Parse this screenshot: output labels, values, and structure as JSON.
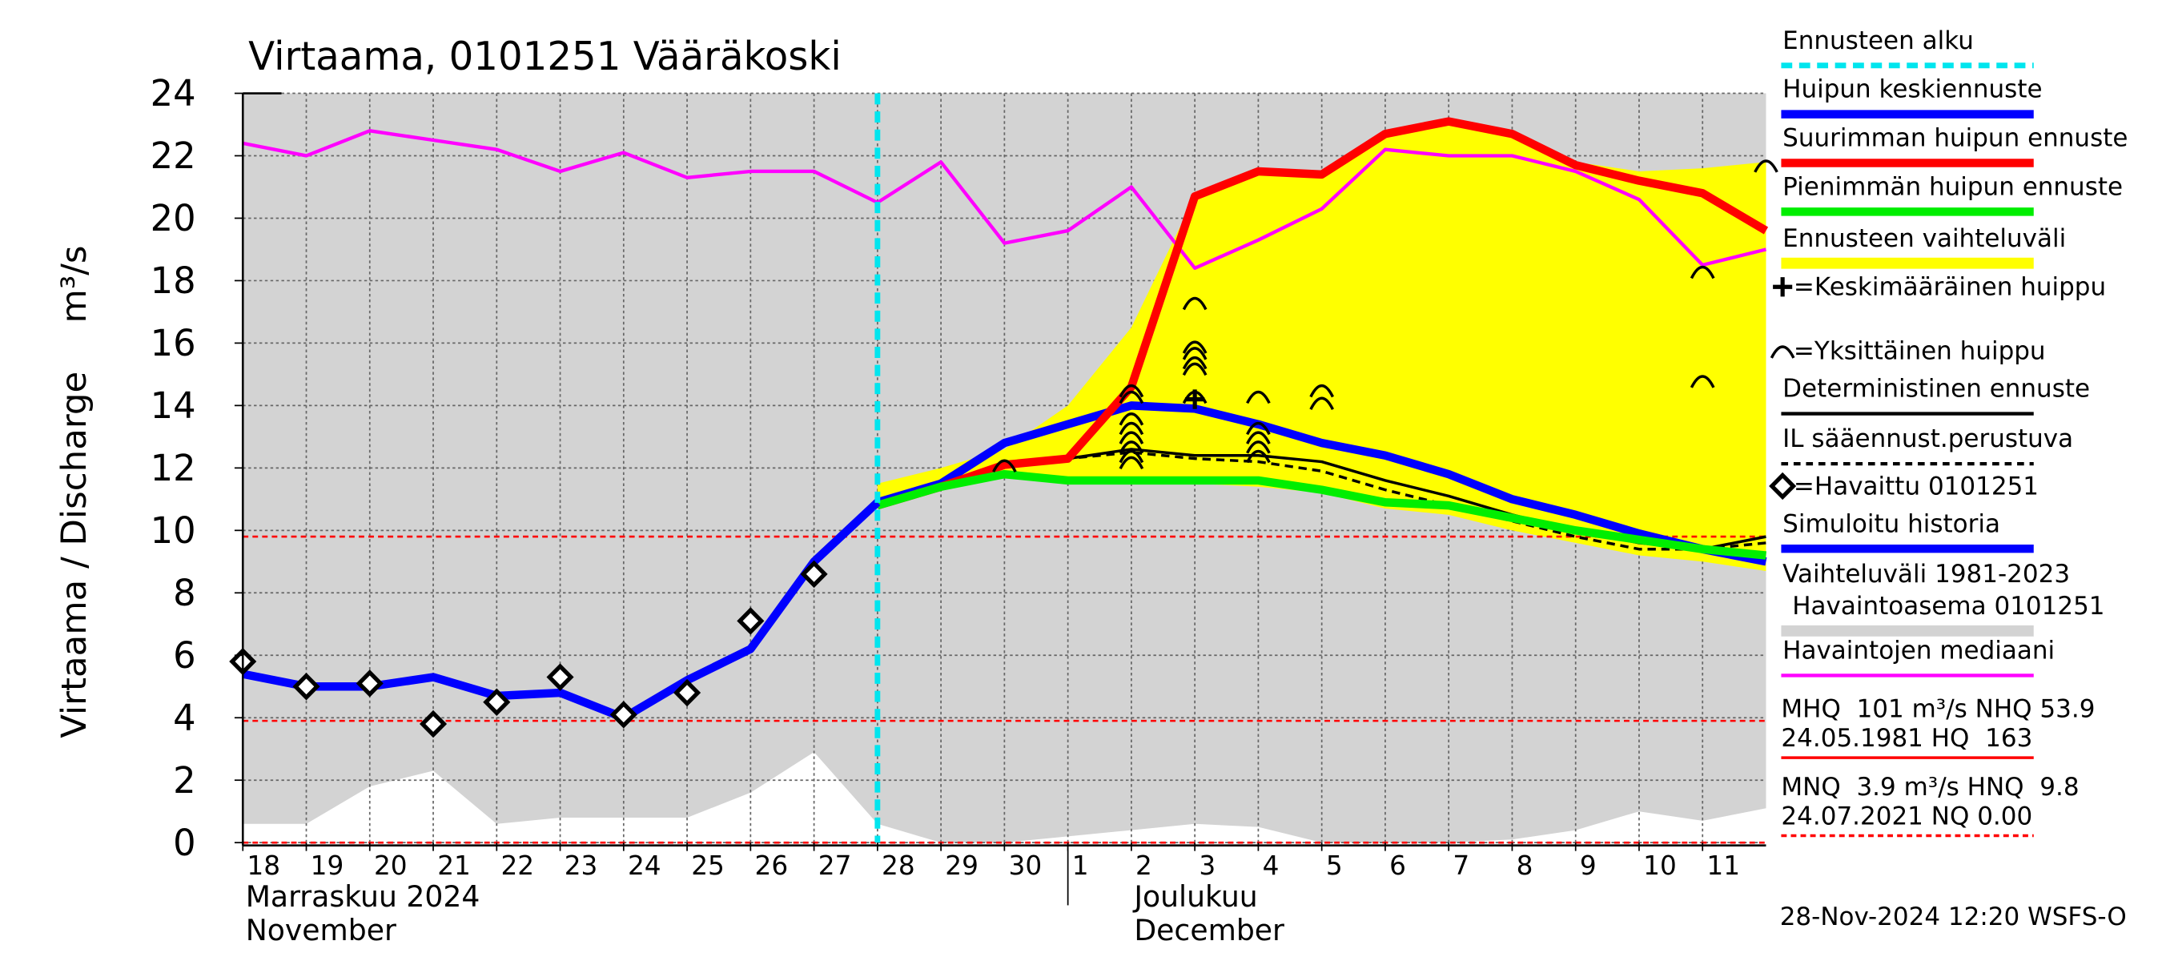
{
  "chart_data": {
    "type": "line",
    "title": "Virtaama, 0101251 Vääräkoski",
    "y_label": "Virtaama / Discharge",
    "y_unit": "m³/s",
    "x": [
      "2024-11-18",
      "2024-11-19",
      "2024-11-20",
      "2024-11-21",
      "2024-11-22",
      "2024-11-23",
      "2024-11-24",
      "2024-11-25",
      "2024-11-26",
      "2024-11-27",
      "2024-11-28",
      "2024-11-29",
      "2024-11-30",
      "2024-12-01",
      "2024-12-02",
      "2024-12-03",
      "2024-12-04",
      "2024-12-05",
      "2024-12-06",
      "2024-12-07",
      "2024-12-08",
      "2024-12-09",
      "2024-12-10",
      "2024-12-11",
      "2024-12-12"
    ],
    "xlim": [
      "2024-11-18",
      "2024-12-12"
    ],
    "xticks": [
      {
        "value": "2024-11-18",
        "label": "18"
      },
      {
        "value": "2024-11-19",
        "label": "19"
      },
      {
        "value": "2024-11-20",
        "label": "20"
      },
      {
        "value": "2024-11-21",
        "label": "21"
      },
      {
        "value": "2024-11-22",
        "label": "22"
      },
      {
        "value": "2024-11-23",
        "label": "23"
      },
      {
        "value": "2024-11-24",
        "label": "24"
      },
      {
        "value": "2024-11-25",
        "label": "25"
      },
      {
        "value": "2024-11-26",
        "label": "26"
      },
      {
        "value": "2024-11-27",
        "label": "27"
      },
      {
        "value": "2024-11-28",
        "label": "28"
      },
      {
        "value": "2024-11-29",
        "label": "29"
      },
      {
        "value": "2024-11-30",
        "label": "30"
      },
      {
        "value": "2024-12-01",
        "label": "1"
      },
      {
        "value": "2024-12-02",
        "label": "2"
      },
      {
        "value": "2024-12-03",
        "label": "3"
      },
      {
        "value": "2024-12-04",
        "label": "4"
      },
      {
        "value": "2024-12-05",
        "label": "5"
      },
      {
        "value": "2024-12-06",
        "label": "6"
      },
      {
        "value": "2024-12-07",
        "label": "7"
      },
      {
        "value": "2024-12-08",
        "label": "8"
      },
      {
        "value": "2024-12-09",
        "label": "9"
      },
      {
        "value": "2024-12-10",
        "label": "10"
      },
      {
        "value": "2024-12-11",
        "label": "11"
      }
    ],
    "month_labels": [
      {
        "value": "2024-11-18",
        "fi": "Marraskuu 2024",
        "en": "November"
      },
      {
        "value": "2024-12-02",
        "fi": "Joulukuu",
        "en": "December"
      }
    ],
    "ylim": [
      0,
      24
    ],
    "yticks": [
      0,
      2,
      4,
      6,
      8,
      10,
      12,
      14,
      16,
      18,
      20,
      22,
      24
    ],
    "grid": true,
    "series": [
      {
        "name": "Ennusteen alku",
        "color": "#00e5ee",
        "kind": "vline",
        "x": "2024-11-28"
      },
      {
        "name": "Huipun keskiennuste",
        "color": "#0000ff",
        "kind": "line",
        "style": "thick",
        "values": [
          null,
          null,
          null,
          null,
          null,
          null,
          null,
          null,
          null,
          null,
          10.9,
          11.5,
          12.8,
          13.4,
          14.0,
          13.9,
          13.4,
          12.8,
          12.4,
          11.8,
          11.0,
          10.5,
          9.9,
          9.4,
          9.0
        ]
      },
      {
        "name": "Suurimman huipun ennuste",
        "color": "#ff0000",
        "kind": "line",
        "style": "thick",
        "values": [
          null,
          null,
          null,
          null,
          null,
          null,
          null,
          null,
          null,
          null,
          10.8,
          11.4,
          12.1,
          12.3,
          14.6,
          20.7,
          21.5,
          21.4,
          22.7,
          23.1,
          22.7,
          21.7,
          21.2,
          20.8,
          19.6
        ]
      },
      {
        "name": "Pienimmän huipun ennuste",
        "color": "#00ee00",
        "kind": "line",
        "style": "thick",
        "values": [
          null,
          null,
          null,
          null,
          null,
          null,
          null,
          null,
          null,
          null,
          10.8,
          11.4,
          11.8,
          11.6,
          11.6,
          11.6,
          11.6,
          11.3,
          10.9,
          10.8,
          10.4,
          10.0,
          9.7,
          9.4,
          9.2
        ]
      },
      {
        "name": "Ennusteen vaihteluväli",
        "color": "#ffff00",
        "kind": "band",
        "lower": [
          null,
          null,
          null,
          null,
          null,
          null,
          null,
          null,
          null,
          null,
          10.8,
          11.3,
          11.8,
          11.6,
          11.5,
          11.5,
          11.4,
          11.2,
          10.7,
          10.5,
          10.0,
          9.6,
          9.2,
          9.0,
          8.7
        ],
        "upper": [
          null,
          null,
          null,
          null,
          null,
          null,
          null,
          null,
          null,
          null,
          11.5,
          12.0,
          12.6,
          14.0,
          16.5,
          20.7,
          21.5,
          21.4,
          22.7,
          23.1,
          22.7,
          21.8,
          21.5,
          21.6,
          21.8
        ]
      },
      {
        "name": "=Keskimääräinen huippu",
        "color": "#000000",
        "kind": "marker",
        "marker": "cross",
        "points": [
          {
            "x": "2024-12-03",
            "y": 14.2
          }
        ]
      },
      {
        "name": "=Yksittäinen huippu",
        "color": "#000000",
        "kind": "marker",
        "marker": "arc",
        "points": [
          {
            "x": "2024-11-30",
            "y": 12.1
          },
          {
            "x": "2024-12-02",
            "y": 14.5
          },
          {
            "x": "2024-12-02",
            "y": 14.3
          },
          {
            "x": "2024-12-02",
            "y": 13.6
          },
          {
            "x": "2024-12-02",
            "y": 13.3
          },
          {
            "x": "2024-12-02",
            "y": 13.0
          },
          {
            "x": "2024-12-02",
            "y": 12.7
          },
          {
            "x": "2024-12-02",
            "y": 12.4
          },
          {
            "x": "2024-12-02",
            "y": 12.2
          },
          {
            "x": "2024-12-03",
            "y": 17.3
          },
          {
            "x": "2024-12-03",
            "y": 15.9
          },
          {
            "x": "2024-12-03",
            "y": 15.7
          },
          {
            "x": "2024-12-03",
            "y": 15.4
          },
          {
            "x": "2024-12-03",
            "y": 15.2
          },
          {
            "x": "2024-12-03",
            "y": 14.3
          },
          {
            "x": "2024-12-04",
            "y": 14.3
          },
          {
            "x": "2024-12-04",
            "y": 13.3
          },
          {
            "x": "2024-12-04",
            "y": 13.0
          },
          {
            "x": "2024-12-04",
            "y": 12.7
          },
          {
            "x": "2024-12-04",
            "y": 12.4
          },
          {
            "x": "2024-12-05",
            "y": 14.5
          },
          {
            "x": "2024-12-05",
            "y": 14.1
          },
          {
            "x": "2024-12-11",
            "y": 18.3
          },
          {
            "x": "2024-12-11",
            "y": 14.8
          },
          {
            "x": "2024-12-12",
            "y": 21.7
          }
        ]
      },
      {
        "name": "Deterministinen ennuste",
        "color": "#000000",
        "kind": "line",
        "style": "thin",
        "values": [
          null,
          null,
          null,
          null,
          null,
          null,
          null,
          null,
          null,
          null,
          10.9,
          11.5,
          12.1,
          12.3,
          12.6,
          12.4,
          12.4,
          12.2,
          11.6,
          11.1,
          10.5,
          10.0,
          9.6,
          9.4,
          9.8
        ]
      },
      {
        "name": "IL sääennust.perustuva",
        "color": "#000000",
        "kind": "line",
        "style": "dashed",
        "values": [
          null,
          null,
          null,
          null,
          null,
          null,
          null,
          null,
          null,
          null,
          10.9,
          11.5,
          12.1,
          12.3,
          12.5,
          12.3,
          12.2,
          11.9,
          11.3,
          10.8,
          10.3,
          9.8,
          9.4,
          9.4,
          9.6
        ]
      },
      {
        "name": "=Havaittu 0101251",
        "color": "#000000",
        "kind": "marker",
        "marker": "diamond",
        "values": [
          5.8,
          5.0,
          5.1,
          3.8,
          4.5,
          5.3,
          4.1,
          4.8,
          7.1,
          8.6,
          null,
          null,
          null,
          null,
          null,
          null,
          null,
          null,
          null,
          null,
          null,
          null,
          null,
          null,
          null
        ]
      },
      {
        "name": "Simuloitu historia",
        "color": "#0000ff",
        "kind": "line",
        "style": "thick",
        "values": [
          5.4,
          5.0,
          5.0,
          5.3,
          4.7,
          4.8,
          4.0,
          5.2,
          6.2,
          9.0,
          10.9,
          null,
          null,
          null,
          null,
          null,
          null,
          null,
          null,
          null,
          null,
          null,
          null,
          null,
          null
        ]
      },
      {
        "name": "Vaihteluväli 1981-2023",
        "name2": "Havaintoasema 0101251",
        "color": "#d3d3d3",
        "kind": "band",
        "lower": [
          0.6,
          0.6,
          1.8,
          2.3,
          0.6,
          0.8,
          0.8,
          0.8,
          1.6,
          2.9,
          0.6,
          0,
          0,
          0.2,
          0.4,
          0.6,
          0.5,
          0,
          0,
          0,
          0.1,
          0.4,
          1.0,
          0.7,
          1.1
        ],
        "upper": [
          24,
          24,
          24,
          24,
          24,
          24,
          24,
          24,
          24,
          24,
          24,
          24,
          24,
          24,
          24,
          24,
          24,
          24,
          24,
          24,
          24,
          24,
          24,
          24,
          24
        ]
      },
      {
        "name": "Havaintojen mediaani",
        "color": "#ff00ff",
        "kind": "line",
        "style": "medium",
        "values": [
          22.4,
          22.0,
          22.8,
          22.5,
          22.2,
          21.5,
          22.1,
          21.3,
          21.5,
          21.5,
          20.5,
          21.8,
          19.2,
          19.6,
          21.0,
          18.4,
          19.3,
          20.3,
          22.2,
          22.0,
          22.0,
          21.5,
          20.6,
          18.5,
          19.0
        ]
      }
    ],
    "reference_lines": {
      "color": "#ff0000",
      "values": [
        9.8,
        3.9,
        0
      ]
    },
    "stats": [
      {
        "lines": [
          "MHQ  101 m³/s NHQ 53.9",
          "24.05.1981 HQ  163"
        ],
        "color": "#ff0000",
        "style": "solid"
      },
      {
        "lines": [
          "MNQ  3.9 m³/s HNQ  9.8",
          "24.07.2021 NQ 0.00"
        ],
        "color": "#ff0000",
        "style": "dashed"
      }
    ],
    "timestamp": "28-Nov-2024 12:20 WSFS-O"
  }
}
